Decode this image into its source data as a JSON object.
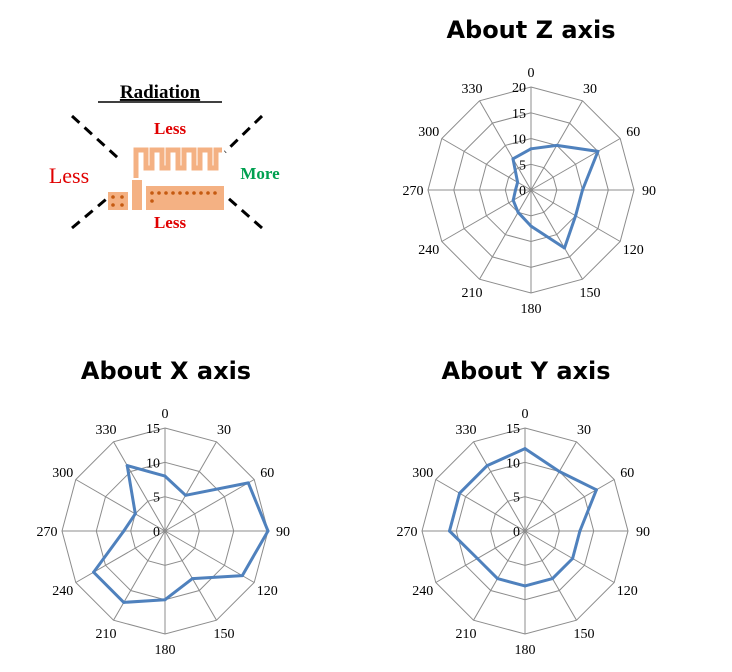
{
  "diagram": {
    "heading": "Radiation",
    "label_top": "Less",
    "label_left": "Less",
    "label_right": "More",
    "label_bottom": "Less",
    "colors": {
      "less_red": "#e00000",
      "more_green": "#00a050",
      "antenna": "#f4b183",
      "antenna_dark": "#c55a11"
    }
  },
  "chart_data": [
    {
      "type": "radar",
      "title": "About Z axis",
      "angles": [
        0,
        30,
        60,
        90,
        120,
        150,
        180,
        210,
        240,
        270,
        300,
        330
      ],
      "radial_ticks": [
        0,
        5,
        10,
        15,
        20
      ],
      "rlim": [
        0,
        20
      ],
      "values": [
        8,
        10,
        15,
        10,
        10,
        13,
        7,
        5,
        4,
        3,
        3,
        7
      ],
      "grid": true,
      "legend": "none",
      "line_color": "#4f81bd"
    },
    {
      "type": "radar",
      "title": "About X axis",
      "angles": [
        0,
        30,
        60,
        90,
        120,
        150,
        180,
        210,
        240,
        270,
        300,
        330
      ],
      "radial_ticks": [
        0,
        5,
        10,
        15
      ],
      "rlim": [
        0,
        15
      ],
      "values": [
        8,
        6,
        14,
        15,
        13,
        8,
        10,
        12,
        12,
        6,
        5,
        11
      ],
      "grid": true,
      "legend": "none",
      "line_color": "#4f81bd"
    },
    {
      "type": "radar",
      "title": "About Y axis",
      "angles": [
        0,
        30,
        60,
        90,
        120,
        150,
        180,
        210,
        240,
        270,
        300,
        330
      ],
      "radial_ticks": [
        0,
        5,
        10,
        15
      ],
      "rlim": [
        0,
        15
      ],
      "values": [
        12,
        10,
        12,
        8,
        8,
        8,
        8,
        8,
        8,
        11,
        11,
        11
      ],
      "grid": true,
      "legend": "none",
      "line_color": "#4f81bd"
    }
  ]
}
